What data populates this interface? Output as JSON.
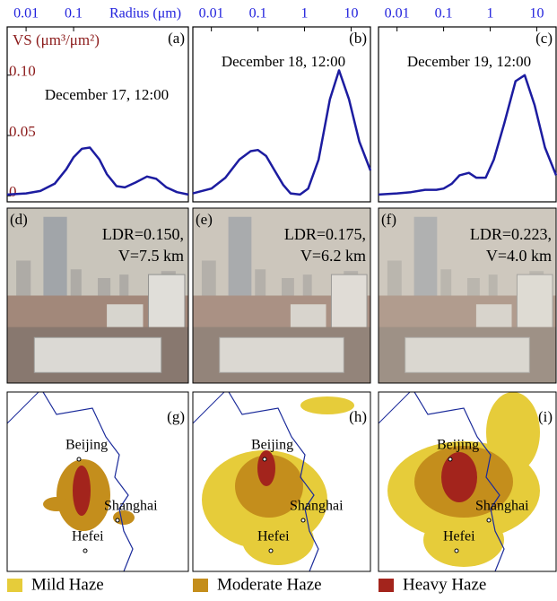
{
  "chart_data": [
    {
      "type": "line",
      "panel_label": "(a)",
      "annotation": "December 17, 12:00",
      "x_label": "Radius (μm)",
      "y_label": "VS (μm³/μm²)",
      "log_x": true,
      "xlim": [
        0.004,
        26
      ],
      "ylim": [
        -0.005,
        0.14
      ],
      "xticks": [
        0.01,
        0.1
      ],
      "yticks": [
        0,
        0.05,
        {
          "value": 0.1,
          "label": "0.10"
        }
      ],
      "x": [
        0.004,
        0.01,
        0.02,
        0.04,
        0.07,
        0.1,
        0.15,
        0.22,
        0.35,
        0.5,
        0.8,
        1.2,
        2,
        3.5,
        5.5,
        9,
        15,
        26
      ],
      "color": "#1c1ca0",
      "values": [
        0.001,
        0.002,
        0.004,
        0.01,
        0.022,
        0.032,
        0.039,
        0.04,
        0.03,
        0.018,
        0.008,
        0.007,
        0.011,
        0.016,
        0.014,
        0.007,
        0.003,
        0.001
      ]
    },
    {
      "type": "line",
      "panel_label": "(b)",
      "annotation": "December 18, 12:00",
      "log_x": true,
      "xlim": [
        0.004,
        26
      ],
      "ylim": [
        -0.005,
        0.14
      ],
      "xticks": [
        0.01,
        0.1,
        1,
        10
      ],
      "x": [
        0.004,
        0.01,
        0.02,
        0.04,
        0.07,
        0.1,
        0.15,
        0.22,
        0.35,
        0.5,
        0.8,
        1.2,
        2,
        3.5,
        5.5,
        9,
        15,
        26
      ],
      "color": "#1c1ca0",
      "values": [
        0.002,
        0.006,
        0.015,
        0.03,
        0.037,
        0.038,
        0.033,
        0.022,
        0.009,
        0.002,
        0.001,
        0.006,
        0.03,
        0.08,
        0.104,
        0.08,
        0.045,
        0.021
      ]
    },
    {
      "type": "line",
      "panel_label": "(c)",
      "annotation": "December 19, 12:00",
      "log_x": true,
      "xlim": [
        0.004,
        26
      ],
      "ylim": [
        -0.005,
        0.14
      ],
      "xticks": [
        0.01,
        0.1,
        1,
        10
      ],
      "x": [
        0.004,
        0.01,
        0.02,
        0.04,
        0.07,
        0.1,
        0.15,
        0.22,
        0.35,
        0.5,
        0.8,
        1.2,
        2,
        3.5,
        5.5,
        9,
        15,
        26
      ],
      "color": "#1c1ca0",
      "values": [
        0.001,
        0.002,
        0.003,
        0.005,
        0.005,
        0.006,
        0.01,
        0.017,
        0.019,
        0.015,
        0.015,
        0.03,
        0.06,
        0.095,
        0.1,
        0.075,
        0.04,
        0.017
      ]
    }
  ],
  "photos": [
    {
      "label": "(d)",
      "ldr": "LDR=0.150,",
      "visibility": "V=7.5 km"
    },
    {
      "label": "(e)",
      "ldr": "LDR=0.175,",
      "visibility": "V=6.2 km"
    },
    {
      "label": "(f)",
      "ldr": "LDR=0.223,",
      "visibility": "V=4.0 km"
    }
  ],
  "maps": [
    {
      "label": "(g)",
      "cities": [
        "Beijing",
        "Shanghai",
        "Hefei"
      ]
    },
    {
      "label": "(h)",
      "cities": [
        "Beijing",
        "Shanghai",
        "Hefei"
      ]
    },
    {
      "label": "(i)",
      "cities": [
        "Beijing",
        "Shanghai",
        "Hefei"
      ]
    }
  ],
  "legend": [
    {
      "label": "Mild Haze",
      "color": "#e6cc3a"
    },
    {
      "label": "Moderate Haze",
      "color": "#c48e1c"
    },
    {
      "label": "Heavy Haze",
      "color": "#a3241c"
    }
  ]
}
